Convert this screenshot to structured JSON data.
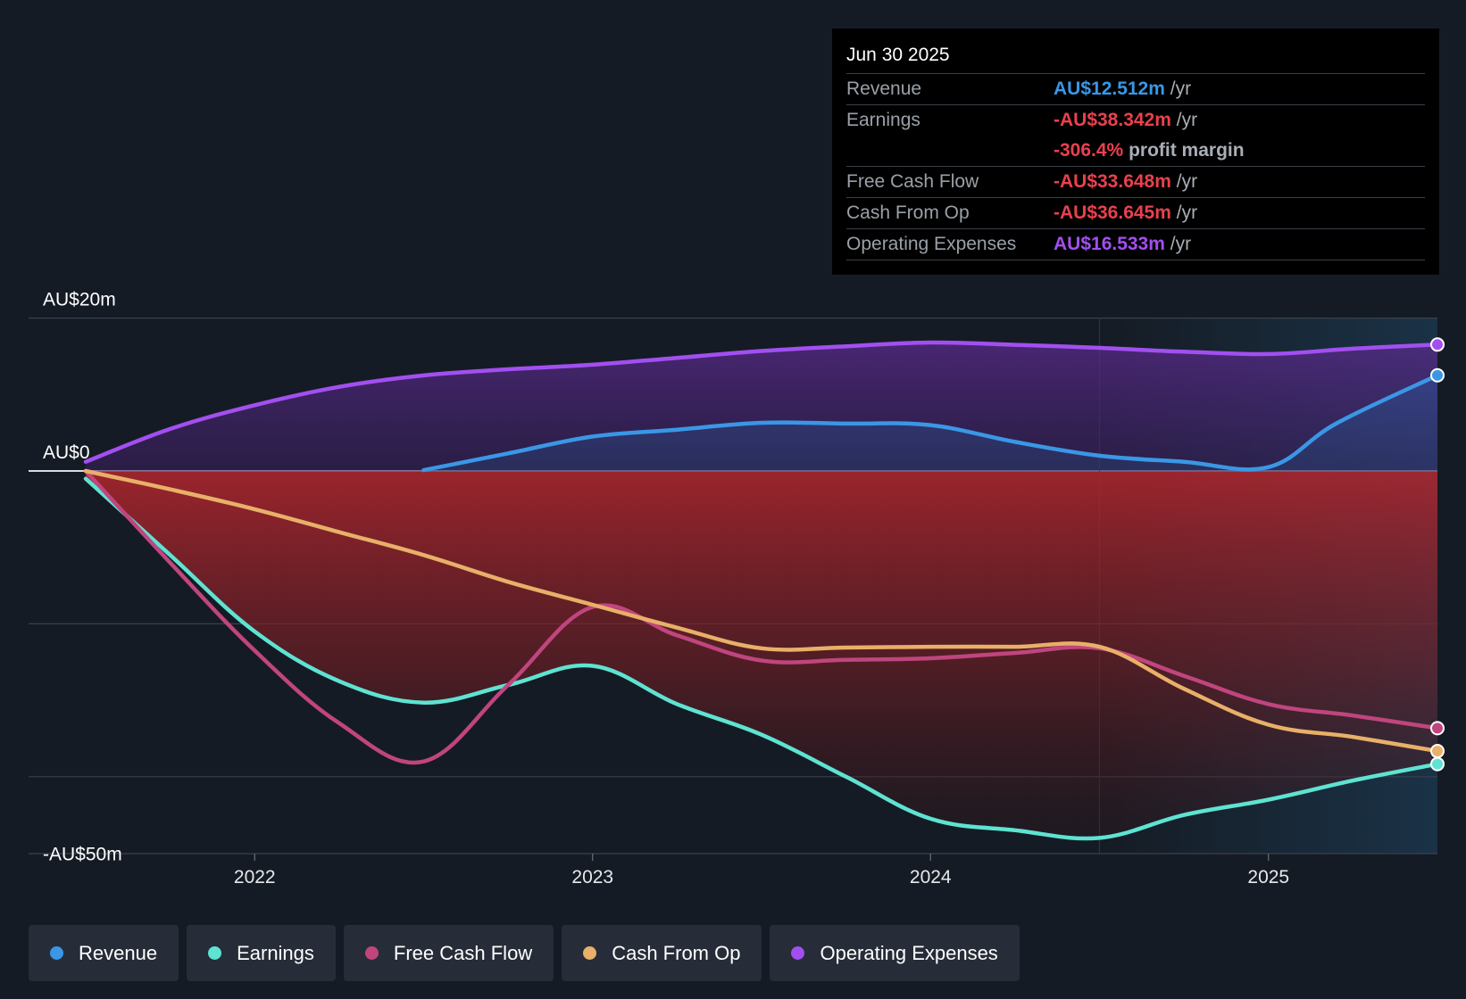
{
  "chart_data": {
    "type": "line",
    "currency": "AU$",
    "y_unit": "AU$ millions",
    "ylim": [
      -50,
      20
    ],
    "y_ticks": [
      {
        "value": 20,
        "label": "AU$20m"
      },
      {
        "value": 0,
        "label": "AU$0"
      },
      {
        "value": -50,
        "label": "-AU$50m"
      }
    ],
    "gridlines": [
      20,
      0,
      -20,
      -40
    ],
    "xlim": [
      2021.5,
      2025.5
    ],
    "x_ticks": [
      {
        "value": 2022,
        "label": "2022"
      },
      {
        "value": 2023,
        "label": "2023"
      },
      {
        "value": 2024,
        "label": "2024"
      },
      {
        "value": 2025,
        "label": "2025"
      }
    ],
    "forecast_start": 2024.5,
    "series": [
      {
        "key": "opex",
        "name": "Operating Expenses",
        "color": "#a24ff0",
        "points": [
          [
            2021.5,
            1.2
          ],
          [
            2021.75,
            5.5
          ],
          [
            2022.0,
            8.6
          ],
          [
            2022.25,
            11.0
          ],
          [
            2022.5,
            12.5
          ],
          [
            2022.75,
            13.3
          ],
          [
            2023.0,
            13.9
          ],
          [
            2023.25,
            14.8
          ],
          [
            2023.5,
            15.7
          ],
          [
            2023.75,
            16.3
          ],
          [
            2024.0,
            16.8
          ],
          [
            2024.25,
            16.5
          ],
          [
            2024.5,
            16.1
          ],
          [
            2024.75,
            15.6
          ],
          [
            2025.0,
            15.3
          ],
          [
            2025.25,
            16.0
          ],
          [
            2025.5,
            16.533
          ]
        ]
      },
      {
        "key": "revenue",
        "name": "Revenue",
        "color": "#3a97e6",
        "points": [
          [
            2022.5,
            0.1
          ],
          [
            2022.75,
            2.3
          ],
          [
            2023.0,
            4.5
          ],
          [
            2023.25,
            5.4
          ],
          [
            2023.5,
            6.3
          ],
          [
            2023.75,
            6.2
          ],
          [
            2024.0,
            6.0
          ],
          [
            2024.25,
            3.8
          ],
          [
            2024.5,
            2.0
          ],
          [
            2024.75,
            1.2
          ],
          [
            2025.0,
            0.5
          ],
          [
            2025.2,
            6.2
          ],
          [
            2025.5,
            12.512
          ]
        ]
      },
      {
        "key": "cfo",
        "name": "Cash From Op",
        "color": "#e8b068",
        "points": [
          [
            2021.5,
            0.0
          ],
          [
            2021.75,
            -2.4
          ],
          [
            2022.0,
            -5.0
          ],
          [
            2022.25,
            -8.0
          ],
          [
            2022.5,
            -11.0
          ],
          [
            2022.75,
            -14.5
          ],
          [
            2023.0,
            -17.5
          ],
          [
            2023.25,
            -20.5
          ],
          [
            2023.5,
            -23.2
          ],
          [
            2023.75,
            -23.1
          ],
          [
            2024.0,
            -23.0
          ],
          [
            2024.25,
            -23.0
          ],
          [
            2024.5,
            -23.0
          ],
          [
            2024.75,
            -28.5
          ],
          [
            2025.0,
            -33.2
          ],
          [
            2025.25,
            -34.8
          ],
          [
            2025.5,
            -36.645
          ]
        ]
      },
      {
        "key": "fcf",
        "name": "Free Cash Flow",
        "color": "#c0457e",
        "points": [
          [
            2021.5,
            0.0
          ],
          [
            2021.75,
            -12.0
          ],
          [
            2022.0,
            -23.5
          ],
          [
            2022.25,
            -33.0
          ],
          [
            2022.5,
            -38.0
          ],
          [
            2022.75,
            -28.0
          ],
          [
            2023.0,
            -17.8
          ],
          [
            2023.25,
            -21.5
          ],
          [
            2023.5,
            -24.8
          ],
          [
            2023.75,
            -24.7
          ],
          [
            2024.0,
            -24.5
          ],
          [
            2024.25,
            -23.8
          ],
          [
            2024.5,
            -23.2
          ],
          [
            2024.75,
            -26.8
          ],
          [
            2025.0,
            -30.5
          ],
          [
            2025.25,
            -32.0
          ],
          [
            2025.5,
            -33.648
          ]
        ]
      },
      {
        "key": "earnings",
        "name": "Earnings",
        "color": "#5ee3d2",
        "points": [
          [
            2021.5,
            -1.0
          ],
          [
            2021.75,
            -11.0
          ],
          [
            2022.0,
            -21.0
          ],
          [
            2022.25,
            -27.5
          ],
          [
            2022.5,
            -30.3
          ],
          [
            2022.75,
            -28.0
          ],
          [
            2023.0,
            -25.5
          ],
          [
            2023.25,
            -30.5
          ],
          [
            2023.5,
            -34.5
          ],
          [
            2023.75,
            -40.0
          ],
          [
            2024.0,
            -45.5
          ],
          [
            2024.25,
            -47.0
          ],
          [
            2024.5,
            -48.0
          ],
          [
            2024.75,
            -45.0
          ],
          [
            2025.0,
            -43.0
          ],
          [
            2025.25,
            -40.5
          ],
          [
            2025.5,
            -38.342
          ]
        ]
      }
    ]
  },
  "tooltip": {
    "date": "Jun 30 2025",
    "revenue": {
      "label": "Revenue",
      "value": "AU$12.512m",
      "unit": "/yr"
    },
    "earnings": {
      "label": "Earnings",
      "value": "-AU$38.342m",
      "unit": "/yr"
    },
    "margin": {
      "value": "-306.4%",
      "unit": "profit margin"
    },
    "fcf": {
      "label": "Free Cash Flow",
      "value": "-AU$33.648m",
      "unit": "/yr"
    },
    "cfo": {
      "label": "Cash From Op",
      "value": "-AU$36.645m",
      "unit": "/yr"
    },
    "opex": {
      "label": "Operating Expenses",
      "value": "AU$16.533m",
      "unit": "/yr"
    }
  },
  "legend": [
    {
      "name": "Revenue",
      "color": "#3a97e6"
    },
    {
      "name": "Earnings",
      "color": "#5ee3d2"
    },
    {
      "name": "Free Cash Flow",
      "color": "#c0457e"
    },
    {
      "name": "Cash From Op",
      "color": "#e8b068"
    },
    {
      "name": "Operating Expenses",
      "color": "#a24ff0"
    }
  ]
}
